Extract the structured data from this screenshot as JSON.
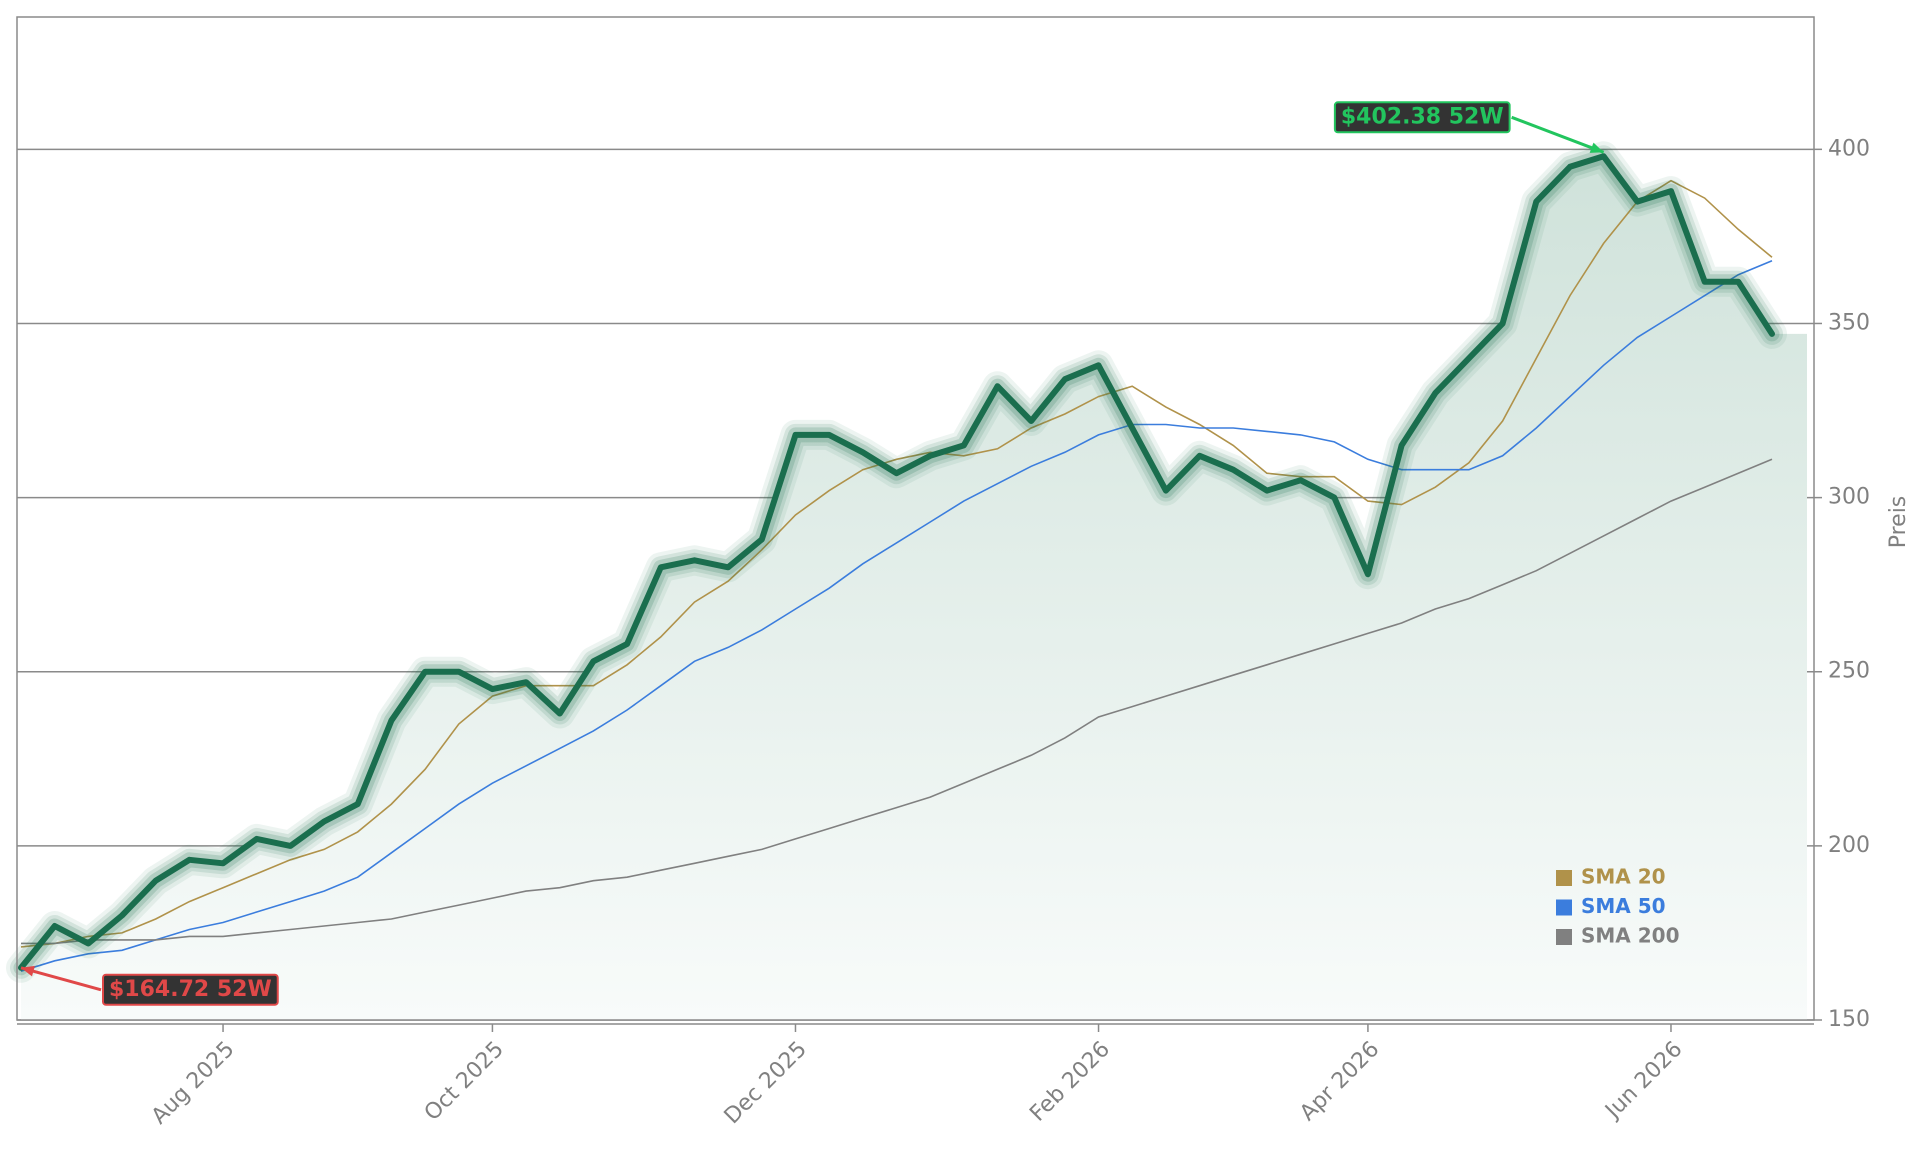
{
  "chart_data": {
    "type": "line",
    "y_label": "Preis",
    "categories": [
      null,
      null,
      null,
      null,
      null,
      null,
      "Aug 2025",
      null,
      null,
      null,
      null,
      null,
      null,
      null,
      "Oct 2025",
      null,
      null,
      null,
      null,
      null,
      null,
      null,
      null,
      "Dec 2025",
      null,
      null,
      null,
      null,
      null,
      null,
      null,
      null,
      "Feb 2026",
      null,
      null,
      null,
      null,
      null,
      null,
      null,
      "Apr 2026",
      null,
      null,
      null,
      null,
      null,
      null,
      null,
      null,
      "Jun 2026",
      null,
      null,
      null
    ],
    "series": [
      {
        "color": "#1a6e4e",
        "values": [
          165,
          177,
          172,
          180,
          190,
          196,
          195,
          202,
          200,
          207,
          212,
          236,
          250,
          250,
          245,
          247,
          238,
          253,
          258,
          280,
          282,
          280,
          288,
          318,
          318,
          313,
          307,
          312,
          315,
          332,
          322,
          334,
          338,
          320,
          302,
          312,
          308,
          302,
          305,
          300,
          278,
          315,
          330,
          340,
          350,
          385,
          395,
          398,
          385,
          388,
          362,
          362,
          347
        ]
      },
      {
        "name": "SMA 20",
        "color": "#b0924a",
        "values": [
          171,
          172,
          174,
          175,
          179,
          184,
          188,
          192,
          196,
          199,
          204,
          212,
          222,
          235,
          243,
          246,
          246,
          246,
          252,
          260,
          270,
          276,
          285,
          295,
          302,
          308,
          311,
          313,
          312,
          314,
          320,
          324,
          329,
          332,
          326,
          321,
          315,
          307,
          306,
          306,
          299,
          298,
          303,
          310,
          322,
          340,
          358,
          373,
          385,
          391,
          386,
          377,
          369
        ]
      },
      {
        "name": "SMA 50",
        "color": "#3b7ddd",
        "values": [
          164,
          167,
          169,
          170,
          173,
          176,
          178,
          181,
          184,
          187,
          191,
          198,
          205,
          212,
          218,
          223,
          228,
          233,
          239,
          246,
          253,
          257,
          262,
          268,
          274,
          281,
          287,
          293,
          299,
          304,
          309,
          313,
          318,
          321,
          321,
          320,
          320,
          319,
          318,
          316,
          311,
          308,
          308,
          308,
          312,
          320,
          329,
          338,
          346,
          352,
          358,
          364,
          368
        ]
      },
      {
        "name": "SMA 200",
        "color": "#808080",
        "values": [
          172,
          172,
          173,
          173,
          173,
          174,
          174,
          175,
          176,
          177,
          178,
          179,
          181,
          183,
          185,
          187,
          188,
          190,
          191,
          193,
          195,
          197,
          199,
          202,
          205,
          208,
          211,
          214,
          218,
          222,
          226,
          231,
          237,
          240,
          243,
          246,
          249,
          252,
          255,
          258,
          261,
          264,
          268,
          271,
          275,
          279,
          284,
          289,
          294,
          299,
          303,
          307,
          311
        ]
      }
    ],
    "annotations": [
      {
        "text": "$402.38 52W",
        "color": "#22c55e"
      },
      {
        "text": "$164.72 52W",
        "color": "#e04848"
      }
    ],
    "ylim": [
      150,
      438
    ],
    "yticks": [
      150,
      200,
      250,
      300,
      350,
      400
    ],
    "grid": true
  }
}
